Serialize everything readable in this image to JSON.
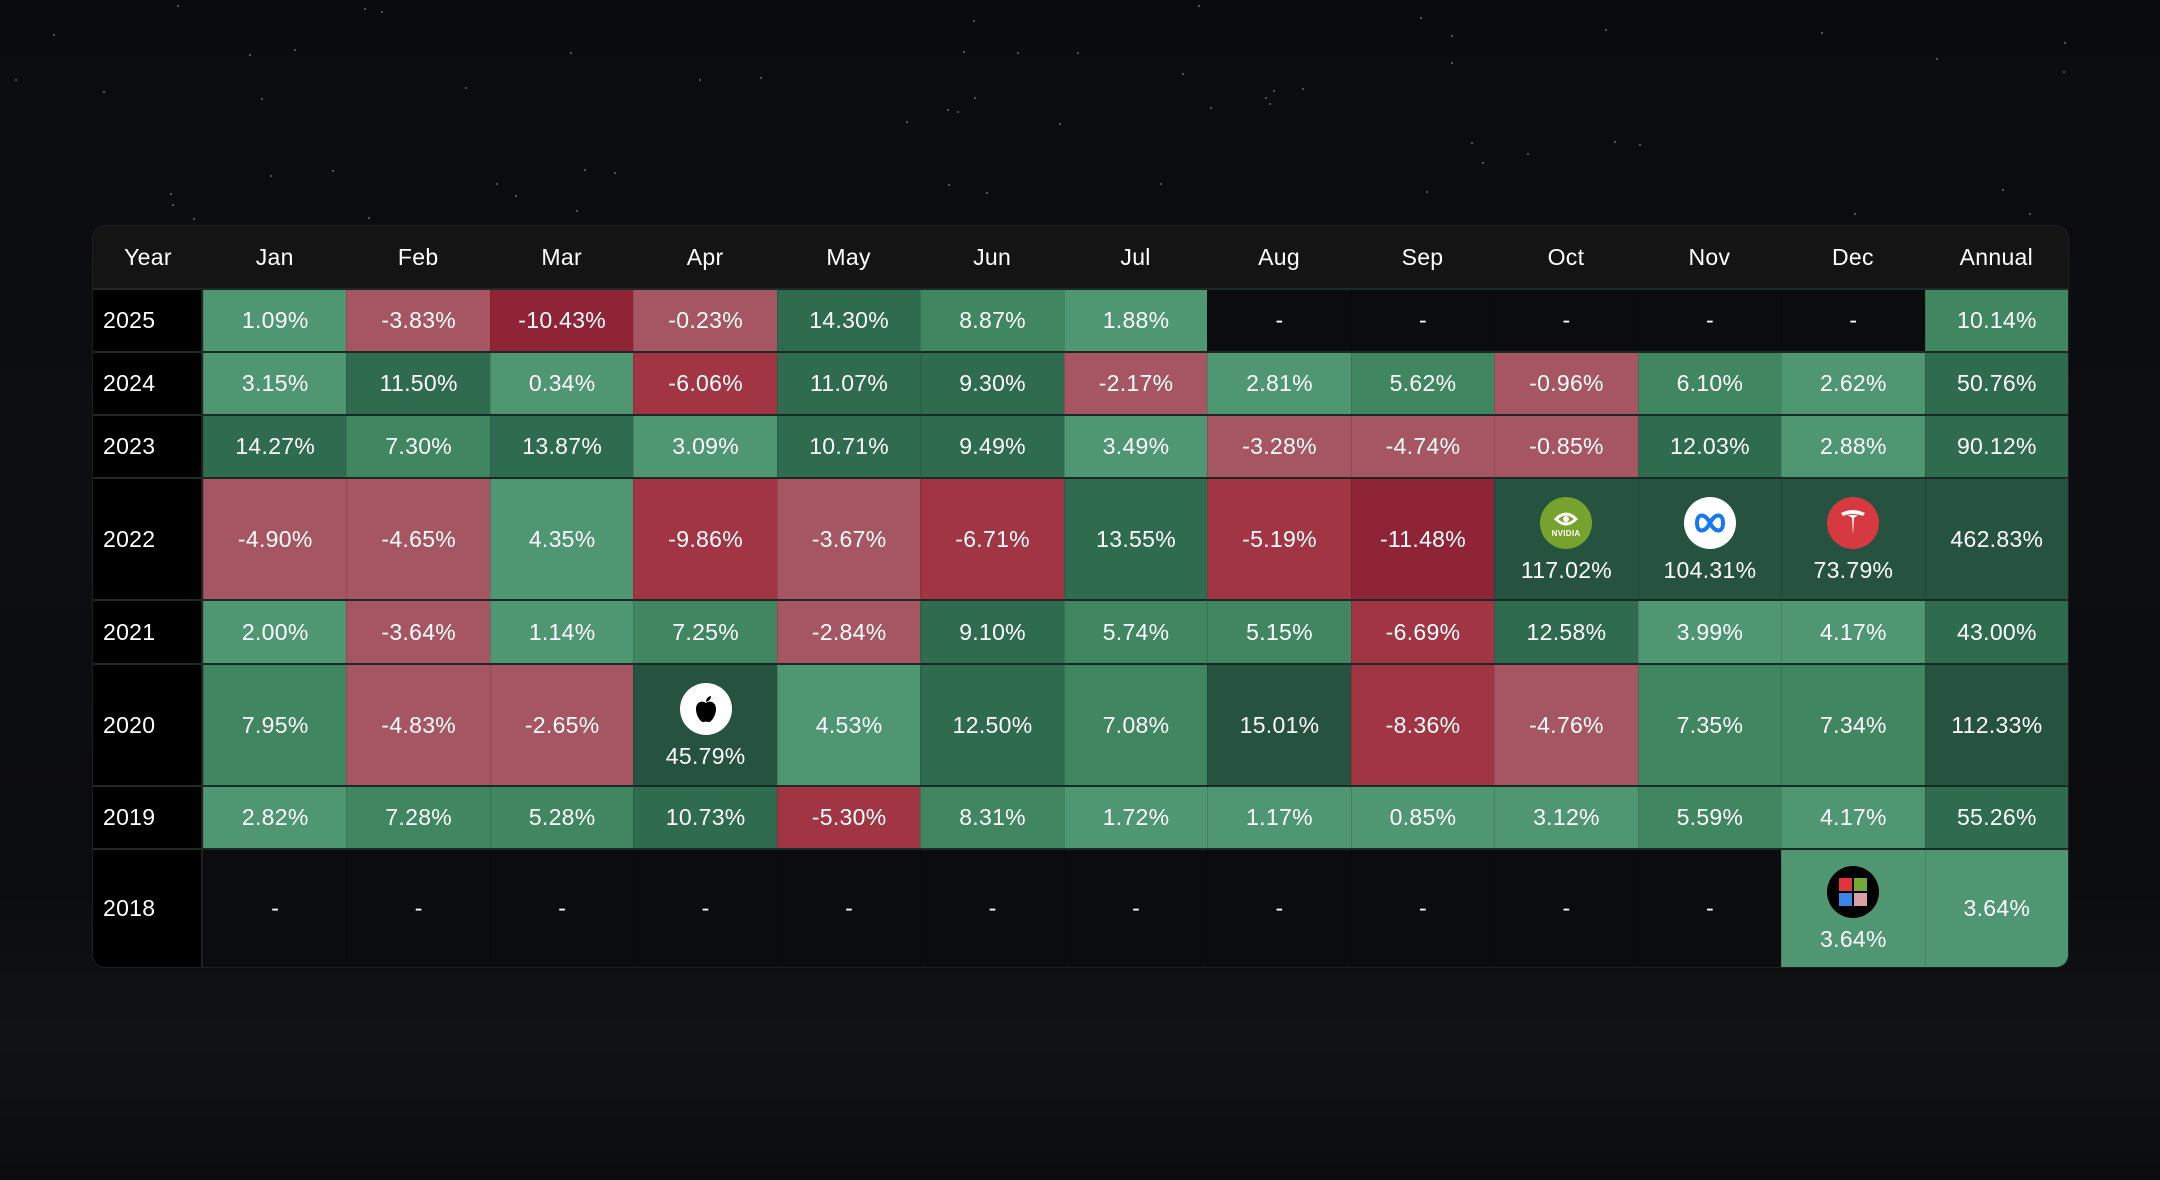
{
  "header": [
    "Year",
    "Jan",
    "Feb",
    "Mar",
    "Apr",
    "May",
    "Jun",
    "Jul",
    "Aug",
    "Sep",
    "Oct",
    "Nov",
    "Dec",
    "Annual"
  ],
  "colors": {
    "green_light": "#4e9772",
    "green_mid": "#3f8661",
    "green_dark": "#2f6b4e",
    "green_darkest": "#25533f",
    "red_light": "#a65663",
    "red_mid": "#a13544",
    "red_dark": "#8e2435",
    "empty": "#0b0c0e"
  },
  "rows": [
    {
      "year": "2025",
      "months": [
        "1.09%",
        "-3.83%",
        "-10.43%",
        "-0.23%",
        "14.30%",
        "8.87%",
        "1.88%",
        "-",
        "-",
        "-",
        "-",
        "-"
      ],
      "annual": "10.14%",
      "icons": {}
    },
    {
      "year": "2024",
      "months": [
        "3.15%",
        "11.50%",
        "0.34%",
        "-6.06%",
        "11.07%",
        "9.30%",
        "-2.17%",
        "2.81%",
        "5.62%",
        "-0.96%",
        "6.10%",
        "2.62%"
      ],
      "annual": "50.76%",
      "icons": {}
    },
    {
      "year": "2023",
      "months": [
        "14.27%",
        "7.30%",
        "13.87%",
        "3.09%",
        "10.71%",
        "9.49%",
        "3.49%",
        "-3.28%",
        "-4.74%",
        "-0.85%",
        "12.03%",
        "2.88%"
      ],
      "annual": "90.12%",
      "icons": {}
    },
    {
      "year": "2022",
      "months": [
        "-4.90%",
        "-4.65%",
        "4.35%",
        "-9.86%",
        "-3.67%",
        "-6.71%",
        "13.55%",
        "-5.19%",
        "-11.48%",
        "117.02%",
        "104.31%",
        "73.79%"
      ],
      "annual": "462.83%",
      "icons": {
        "9": "nvidia-logo",
        "10": "meta-logo",
        "11": "tesla-logo"
      }
    },
    {
      "year": "2021",
      "months": [
        "2.00%",
        "-3.64%",
        "1.14%",
        "7.25%",
        "-2.84%",
        "9.10%",
        "5.74%",
        "5.15%",
        "-6.69%",
        "12.58%",
        "3.99%",
        "4.17%"
      ],
      "annual": "43.00%",
      "icons": {}
    },
    {
      "year": "2020",
      "months": [
        "7.95%",
        "-4.83%",
        "-2.65%",
        "45.79%",
        "4.53%",
        "12.50%",
        "7.08%",
        "15.01%",
        "-8.36%",
        "-4.76%",
        "7.35%",
        "7.34%"
      ],
      "annual": "112.33%",
      "icons": {
        "3": "apple-logo"
      }
    },
    {
      "year": "2019",
      "months": [
        "2.82%",
        "7.28%",
        "5.28%",
        "10.73%",
        "-5.30%",
        "8.31%",
        "1.72%",
        "1.17%",
        "0.85%",
        "3.12%",
        "5.59%",
        "4.17%"
      ],
      "annual": "55.26%",
      "icons": {}
    },
    {
      "year": "2018",
      "months": [
        "-",
        "-",
        "-",
        "-",
        "-",
        "-",
        "-",
        "-",
        "-",
        "-",
        "-",
        "3.64%"
      ],
      "annual": "3.64%",
      "icons": {
        "11": "microsoft-logo"
      }
    }
  ]
}
